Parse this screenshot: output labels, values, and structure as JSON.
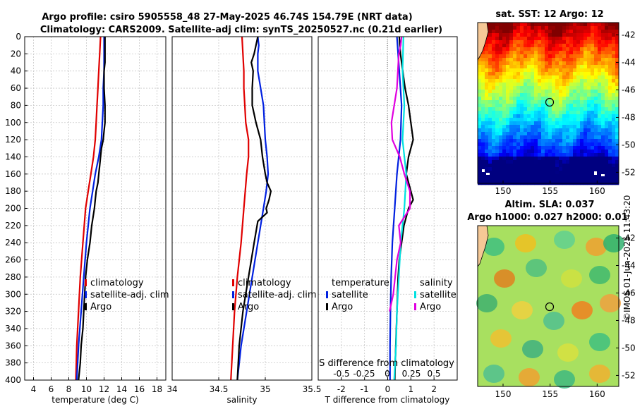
{
  "title_line1": "Argo profile: csiro 5905558_48 27-May-2025 46.74S 154.79E (NRT data)",
  "title_line2": "Climatology: CARS2009. Satellite-adj clim: synTS_20250527.nc (0.21d earlier)",
  "timestamp": "©IMOS 01-Jun-2025 11:43:20",
  "colors": {
    "climatology": "#e00000",
    "satellite": "#0020e0",
    "argo": "#000000",
    "cyan": "#00e0e0",
    "magenta": "#e000e0"
  },
  "chart_data": [
    {
      "type": "line",
      "id": "temperature",
      "xlabel": "temperature (deg C)",
      "xlim": [
        3,
        19
      ],
      "ylim": [
        400,
        0
      ],
      "xticks": [
        4,
        6,
        8,
        10,
        12,
        14,
        16,
        18
      ],
      "xtick_labels": [
        "4",
        "6",
        "8",
        "10",
        "12",
        "14",
        "16",
        "18"
      ],
      "yticks": [
        0,
        20,
        40,
        60,
        80,
        100,
        120,
        140,
        160,
        180,
        200,
        220,
        240,
        260,
        280,
        300,
        320,
        340,
        360,
        380,
        400
      ],
      "ytick_labels": [
        "0",
        "20",
        "40",
        "60",
        "80",
        "100",
        "120",
        "140",
        "160",
        "180",
        "200",
        "220",
        "240",
        "260",
        "280",
        "300",
        "320",
        "340",
        "360",
        "380",
        "400"
      ],
      "legend": [
        "climatology",
        "satellite-adj. clim",
        "Argo"
      ],
      "series": [
        {
          "name": "climatology",
          "depth": [
            0,
            20,
            40,
            60,
            80,
            100,
            120,
            140,
            160,
            180,
            200,
            240,
            280,
            320,
            360,
            400
          ],
          "values": [
            11.6,
            11.5,
            11.4,
            11.3,
            11.2,
            11.1,
            11.0,
            10.8,
            10.5,
            10.2,
            9.9,
            9.6,
            9.3,
            9.1,
            8.9,
            8.8
          ]
        },
        {
          "name": "satellite-adj. clim",
          "depth": [
            0,
            20,
            40,
            60,
            80,
            100,
            120,
            140,
            160,
            180,
            200,
            240,
            280,
            320,
            360,
            400
          ],
          "values": [
            12.0,
            12.0,
            12.0,
            11.9,
            11.9,
            11.8,
            11.7,
            11.4,
            11.0,
            10.7,
            10.4,
            10.0,
            9.7,
            9.4,
            9.1,
            8.9
          ]
        },
        {
          "name": "Argo",
          "depth": [
            0,
            20,
            30,
            40,
            60,
            80,
            100,
            110,
            120,
            130,
            140,
            150,
            160,
            170,
            180,
            190,
            200,
            220,
            240,
            260,
            280,
            300,
            320,
            340,
            360,
            380,
            400
          ],
          "values": [
            12.1,
            12.1,
            12.1,
            12.0,
            12.0,
            12.1,
            12.1,
            12.0,
            11.9,
            11.7,
            11.6,
            11.5,
            11.4,
            11.3,
            11.1,
            11.0,
            10.9,
            10.6,
            10.4,
            10.1,
            9.9,
            9.8,
            9.7,
            9.6,
            9.4,
            9.3,
            9.1
          ]
        }
      ]
    },
    {
      "type": "line",
      "id": "salinity",
      "xlabel": "salinity",
      "xlim": [
        34,
        35.5
      ],
      "ylim": [
        400,
        0
      ],
      "xticks": [
        34,
        34.5,
        35,
        35.5
      ],
      "xtick_labels": [
        "34",
        "34.5",
        "35",
        "35.5"
      ],
      "legend": [
        "climatology",
        "satellite-adj. clim",
        "Argo"
      ],
      "series": [
        {
          "name": "climatology",
          "depth": [
            0,
            20,
            40,
            60,
            80,
            100,
            120,
            140,
            160,
            200,
            240,
            280,
            320,
            360,
            400
          ],
          "values": [
            34.75,
            34.76,
            34.77,
            34.77,
            34.78,
            34.79,
            34.82,
            34.82,
            34.8,
            34.77,
            34.74,
            34.7,
            34.67,
            34.65,
            34.63
          ]
        },
        {
          "name": "satellite-adj. clim",
          "depth": [
            0,
            10,
            20,
            40,
            60,
            80,
            100,
            120,
            140,
            160,
            180,
            200,
            240,
            280,
            320,
            360,
            400
          ],
          "values": [
            34.92,
            34.93,
            34.92,
            34.92,
            34.95,
            34.98,
            34.99,
            35.0,
            35.02,
            35.03,
            35.01,
            34.98,
            34.92,
            34.86,
            34.8,
            34.74,
            34.7
          ]
        },
        {
          "name": "Argo",
          "depth": [
            0,
            10,
            20,
            30,
            40,
            60,
            80,
            100,
            120,
            140,
            160,
            170,
            180,
            190,
            200,
            205,
            215,
            240,
            280,
            320,
            360,
            400
          ],
          "values": [
            34.92,
            34.9,
            34.88,
            34.85,
            34.87,
            34.86,
            34.86,
            34.9,
            34.95,
            34.97,
            35.0,
            35.02,
            35.06,
            35.04,
            35.01,
            35.02,
            34.92,
            34.88,
            34.82,
            34.76,
            34.72,
            34.7
          ]
        }
      ]
    },
    {
      "type": "line",
      "id": "differences",
      "xlabel": "T difference from climatology",
      "xlim": [
        -3,
        3
      ],
      "ylim": [
        400,
        0
      ],
      "xticks": [
        -2,
        -1,
        0,
        1,
        2
      ],
      "xtick_labels": [
        "-2",
        "-1",
        "0",
        "1",
        "2"
      ],
      "top_xlabel": "S difference from climatology",
      "top_xtick_labels": [
        "-0.5",
        "-0.25",
        "0",
        "0.25",
        "0.5"
      ],
      "legend_left_title": "temperature",
      "legend_left": [
        "satellite",
        "Argo"
      ],
      "legend_right_title": "salinity",
      "legend_right": [
        "satellite",
        "Argo"
      ],
      "series": [
        {
          "name": "T satellite",
          "depth": [
            0,
            40,
            80,
            120,
            160,
            200,
            240,
            280,
            320,
            360,
            400
          ],
          "values": [
            0.4,
            0.5,
            0.6,
            0.55,
            0.4,
            0.3,
            0.2,
            0.15,
            0.12,
            0.1,
            0.1
          ]
        },
        {
          "name": "T Argo",
          "depth": [
            0,
            20,
            40,
            60,
            80,
            100,
            120,
            140,
            160,
            180,
            190,
            200,
            220,
            240,
            260,
            280,
            320,
            360,
            400
          ],
          "values": [
            0.5,
            0.55,
            0.65,
            0.75,
            0.9,
            1.0,
            1.1,
            0.9,
            0.8,
            1.0,
            1.1,
            0.9,
            0.7,
            0.6,
            0.5,
            0.45,
            0.4,
            0.35,
            0.3
          ]
        },
        {
          "name": "S satellite",
          "depth": [
            0,
            40,
            80,
            120,
            160,
            200,
            240,
            280,
            320,
            360,
            400
          ],
          "values": [
            0.17,
            0.16,
            0.18,
            0.16,
            0.2,
            0.18,
            0.14,
            0.12,
            0.1,
            0.09,
            0.07
          ]
        },
        {
          "name": "S Argo",
          "depth": [
            0,
            10,
            20,
            40,
            60,
            80,
            100,
            120,
            140,
            160,
            180,
            200,
            220,
            240,
            260,
            280,
            300,
            320
          ],
          "values": [
            0.15,
            0.14,
            0.12,
            0.11,
            0.1,
            0.07,
            0.04,
            0.05,
            0.13,
            0.18,
            0.24,
            0.24,
            0.12,
            0.14,
            0.1,
            0.08,
            0.06,
            0.02
          ]
        }
      ]
    },
    {
      "type": "heatmap",
      "id": "sst-map",
      "title": "sat. SST: 12 Argo: 12",
      "xticks": [
        150,
        155,
        160
      ],
      "xtick_labels": [
        "150",
        "155",
        "160"
      ],
      "yticks": [
        -42,
        -44,
        -46,
        -48,
        -50,
        -52
      ],
      "ytick_labels": [
        "-42",
        "-44",
        "-46",
        "-48",
        "-50",
        "-52"
      ],
      "xlim": [
        147.3,
        162.3
      ],
      "ylim": [
        -41.1,
        -52.8
      ],
      "argo_position": [
        154.79,
        -46.74
      ]
    },
    {
      "type": "heatmap",
      "id": "sla-map",
      "title_line1": "Altim. SLA: 0.037",
      "title_line2": "Argo h1000: 0.027 h2000: 0.01",
      "xticks": [
        150,
        155,
        160
      ],
      "xtick_labels": [
        "150",
        "155",
        "160"
      ],
      "yticks": [
        -42,
        -44,
        -46,
        -48,
        -50,
        -52
      ],
      "ytick_labels": [
        "-42",
        "-44",
        "-46",
        "-48",
        "-50",
        "-52"
      ],
      "xlim": [
        147.3,
        162.3
      ],
      "ylim": [
        -41.1,
        -52.8
      ],
      "argo_position": [
        154.79,
        -46.74
      ]
    }
  ]
}
